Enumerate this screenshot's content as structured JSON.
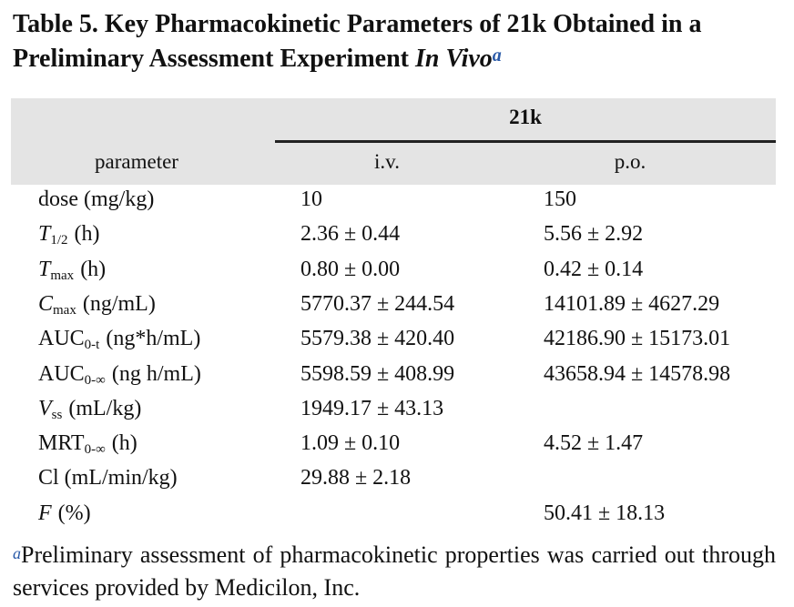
{
  "title": {
    "text": "Table 5. Key Pharmacokinetic Parameters of 21k Obtained in a Preliminary Assessment Experiment",
    "italic": "In Vivo",
    "mark": "a"
  },
  "table": {
    "group": "21k",
    "columns": [
      "parameter",
      "i.v.",
      "p.o."
    ],
    "rows": [
      {
        "param": {
          "name": "dose (mg/kg)",
          "italic": false
        },
        "iv": "10",
        "po": "150"
      },
      {
        "param": {
          "name": "T",
          "italic": true,
          "sub": "1/2",
          "rest": "(h)"
        },
        "iv": "2.36 ± 0.44",
        "po": "5.56 ± 2.92"
      },
      {
        "param": {
          "name": "T",
          "italic": true,
          "sub": "max",
          "rest": "(h)"
        },
        "iv": "0.80 ± 0.00",
        "po": "0.42 ± 0.14"
      },
      {
        "param": {
          "name": "C",
          "italic": true,
          "sub": "max",
          "rest": "(ng/mL)"
        },
        "iv": "5770.37 ± 244.54",
        "po": "14101.89 ± 4627.29"
      },
      {
        "param": {
          "name": "AUC",
          "italic": false,
          "sub": "0-t",
          "rest": "(ng*h/mL)"
        },
        "iv": "5579.38 ± 420.40",
        "po": "42186.90 ± 15173.01"
      },
      {
        "param": {
          "name": "AUC",
          "italic": false,
          "sub": "0-∞",
          "rest": "(ng h/mL)"
        },
        "iv": "5598.59 ± 408.99",
        "po": "43658.94 ± 14578.98"
      },
      {
        "param": {
          "name": "V",
          "italic": true,
          "sub": "ss",
          "rest": "(mL/kg)"
        },
        "iv": "1949.17 ± 43.13",
        "po": null
      },
      {
        "param": {
          "name": "MRT",
          "italic": false,
          "sub": "0-∞",
          "rest": "(h)"
        },
        "iv": "1.09 ± 0.10",
        "po": "4.52 ± 1.47"
      },
      {
        "param": {
          "name": "Cl (mL/min/kg)",
          "italic": false
        },
        "iv": "29.88 ± 2.18",
        "po": null
      },
      {
        "param": {
          "name": "F",
          "italic": true,
          "rest": "(%)"
        },
        "iv": null,
        "po": "50.41 ± 18.13"
      }
    ]
  },
  "footnote": {
    "mark": "a",
    "text": "Preliminary assessment of pharmacokinetic properties was carried out through services provided by Medicilon, Inc."
  }
}
